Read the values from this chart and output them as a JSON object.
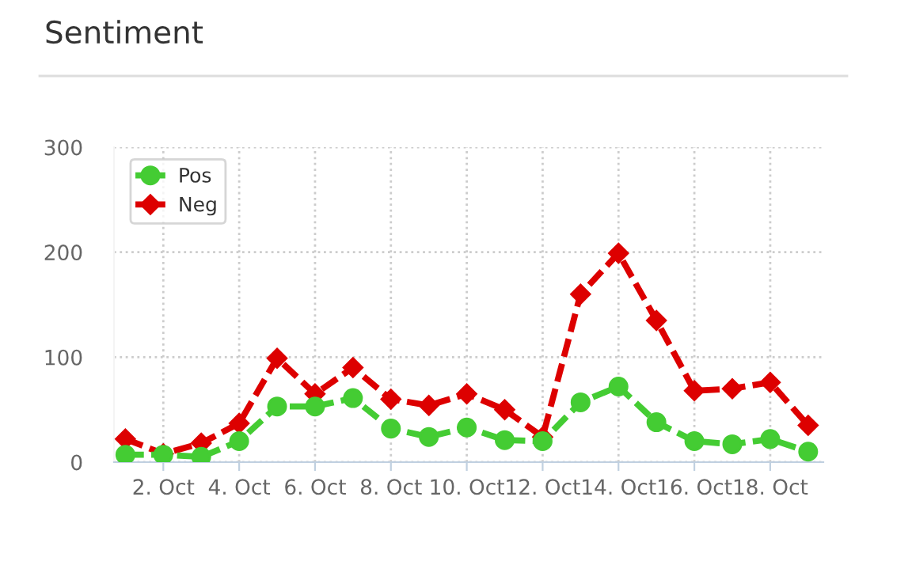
{
  "chart_data": {
    "type": "line",
    "title": "Sentiment",
    "categories": [
      null,
      "2. Oct",
      null,
      "4. Oct",
      null,
      "6. Oct",
      null,
      "8. Oct",
      null,
      "10. Oct",
      null,
      "12. Oct",
      null,
      "14. Oct",
      null,
      "16. Oct",
      null,
      "18. Oct",
      null
    ],
    "series": [
      {
        "name": "Pos",
        "color": "#44cc33",
        "marker": "circle",
        "values": [
          7,
          7,
          5,
          20,
          53,
          53,
          61,
          32,
          24,
          33,
          21,
          20,
          57,
          72,
          38,
          20,
          17,
          22,
          10
        ]
      },
      {
        "name": "Neg",
        "color": "#dd0000",
        "marker": "diamond",
        "values": [
          22,
          8,
          18,
          37,
          99,
          65,
          90,
          60,
          54,
          65,
          50,
          24,
          160,
          199,
          135,
          68,
          70,
          76,
          35
        ]
      }
    ],
    "ylim": [
      0,
      300
    ],
    "yticks": [
      0,
      100,
      200,
      300
    ],
    "grid": true,
    "legend": "top left",
    "line_style": "dashed"
  }
}
